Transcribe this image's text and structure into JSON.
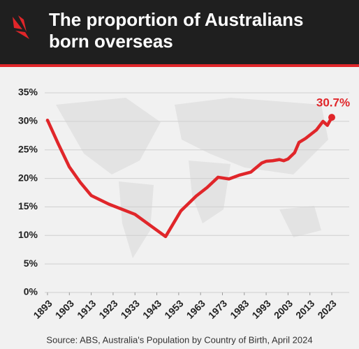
{
  "chart_data": {
    "type": "line",
    "title": "The proportion of Australians born overseas",
    "source": "Source: ABS, Australia's Population by Country of Birth, April 2024",
    "x": [
      1893,
      1898,
      1903,
      1908,
      1913,
      1921,
      1933,
      1947,
      1954,
      1961,
      1966,
      1971,
      1976,
      1981,
      1986,
      1991,
      1993,
      1996,
      1999,
      2001,
      2003,
      2006,
      2008,
      2011,
      2016,
      2019,
      2021,
      2023
    ],
    "series": [
      {
        "name": "Born overseas",
        "color": "#e0262a",
        "values": [
          30.2,
          26,
          22,
          19.3,
          17,
          15.5,
          13.7,
          9.8,
          14.3,
          16.9,
          18.4,
          20.2,
          19.9,
          20.6,
          21.1,
          22.7,
          23,
          23.1,
          23.3,
          23.1,
          23.4,
          24.5,
          26.3,
          27.0,
          28.5,
          30.0,
          29.3,
          30.7
        ],
        "value_labels": [
          null,
          null,
          null,
          null,
          null,
          null,
          null,
          null,
          null,
          null,
          null,
          null,
          null,
          null,
          null,
          null,
          null,
          null,
          null,
          null,
          null,
          null,
          null,
          null,
          null,
          null,
          null,
          "30.7%"
        ]
      }
    ],
    "xlim": [
      1893,
      2023
    ],
    "xticks": [
      1893,
      1903,
      1913,
      1923,
      1933,
      1943,
      1953,
      1963,
      1973,
      1983,
      1993,
      2003,
      2013,
      2023
    ],
    "ylim": [
      0,
      35
    ],
    "yticks": [
      {
        "value": 0,
        "label": "0%"
      },
      {
        "value": 5,
        "label": "5%"
      },
      {
        "value": 10,
        "label": "10%"
      },
      {
        "value": 15,
        "label": "15%"
      },
      {
        "value": 20,
        "label": "20%"
      },
      {
        "value": 25,
        "label": "25%"
      },
      {
        "value": 30,
        "label": "30%"
      },
      {
        "value": 35,
        "label": "35%"
      }
    ],
    "grid": true
  }
}
